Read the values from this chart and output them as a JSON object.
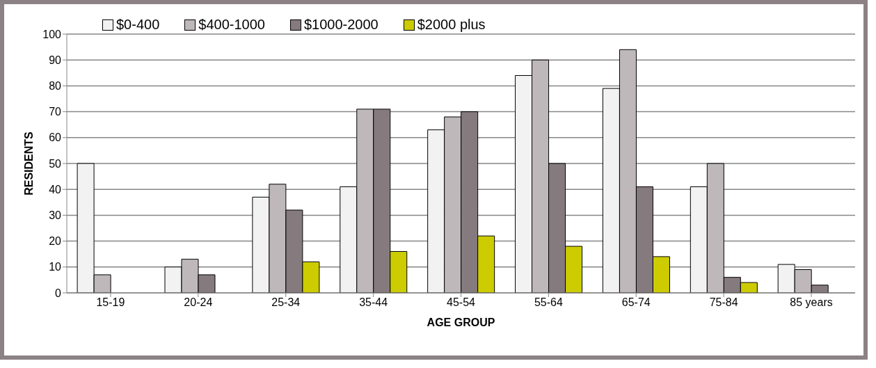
{
  "chart_data": {
    "type": "bar",
    "xlabel": "AGE GROUP",
    "ylabel": "RESIDENTS",
    "categories": [
      "15-19",
      "20-24",
      "25-34",
      "35-44",
      "45-54",
      "55-64",
      "65-74",
      "75-84",
      "85 years"
    ],
    "series": [
      {
        "name": "$0-400",
        "color": "#f2f2f2",
        "values": [
          50,
          10,
          37,
          41,
          63,
          84,
          79,
          41,
          11
        ]
      },
      {
        "name": "$400-1000",
        "color": "#bfb8bb",
        "values": [
          7,
          13,
          42,
          71,
          68,
          90,
          94,
          50,
          9
        ]
      },
      {
        "name": "$1000-2000",
        "color": "#857a7e",
        "values": [
          0,
          7,
          32,
          71,
          70,
          50,
          41,
          6,
          3
        ]
      },
      {
        "name": "$2000 plus",
        "color": "#cccc00",
        "values": [
          0,
          0,
          12,
          16,
          22,
          18,
          14,
          4,
          0
        ]
      }
    ],
    "ylim": [
      0,
      100
    ],
    "yticks": [
      0,
      10,
      20,
      30,
      40,
      50,
      60,
      70,
      80,
      90,
      100
    ],
    "grid": "y",
    "legend": "top left"
  }
}
